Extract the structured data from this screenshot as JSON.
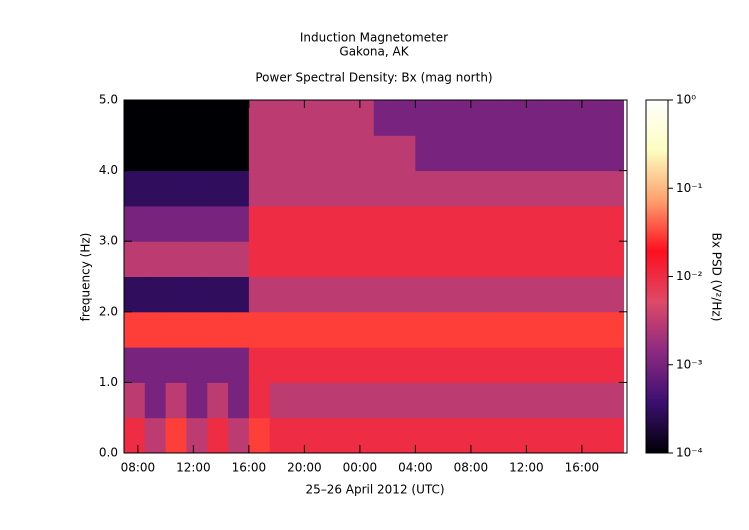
{
  "chart_data": {
    "type": "heatmap",
    "title": "Induction Magnetometer",
    "subtitle": "Gakona, AK",
    "plot_title": "Power Spectral Density: Bx (mag north)",
    "x_label": "25–26 April 2012 (UTC)",
    "y_label": "frequency (Hz)",
    "colorbar_label": "Bx PSD (V²/Hz)",
    "x": [
      7.75,
      9.25,
      10.75,
      12.25,
      13.75,
      15.25,
      16.75,
      18.25,
      19.75,
      21.25,
      22.75,
      24.25,
      25.75,
      27.25,
      28.75,
      30.25,
      31.75,
      33.25,
      34.75,
      36.25,
      37.75,
      39.25,
      40.75,
      42.25
    ],
    "y": [
      0.25,
      0.75,
      1.25,
      1.75,
      2.25,
      2.75,
      3.25,
      3.75,
      4.25,
      4.75
    ],
    "z": [
      [
        0.01,
        0.003,
        0.03,
        0.003,
        0.01,
        0.003,
        0.03,
        0.01,
        0.01,
        0.01,
        0.01,
        0.01,
        0.01,
        0.01,
        0.01,
        0.01,
        0.01,
        0.01,
        0.01,
        0.01,
        0.01,
        0.01,
        0.01,
        0.01
      ],
      [
        0.003,
        0.001,
        0.003,
        0.001,
        0.003,
        0.001,
        0.01,
        0.003,
        0.003,
        0.003,
        0.003,
        0.003,
        0.003,
        0.003,
        0.003,
        0.003,
        0.003,
        0.003,
        0.003,
        0.003,
        0.003,
        0.003,
        0.003,
        0.003
      ],
      [
        0.001,
        0.001,
        0.001,
        0.001,
        0.001,
        0.001,
        0.01,
        0.01,
        0.01,
        0.01,
        0.01,
        0.01,
        0.01,
        0.01,
        0.01,
        0.01,
        0.01,
        0.01,
        0.01,
        0.01,
        0.01,
        0.01,
        0.01,
        0.01
      ],
      [
        0.03,
        0.03,
        0.03,
        0.03,
        0.03,
        0.03,
        0.03,
        0.03,
        0.03,
        0.03,
        0.03,
        0.03,
        0.03,
        0.03,
        0.03,
        0.03,
        0.03,
        0.03,
        0.03,
        0.03,
        0.03,
        0.03,
        0.03,
        0.03
      ],
      [
        0.0003,
        0.0003,
        0.0003,
        0.0003,
        0.0003,
        0.0003,
        0.003,
        0.003,
        0.003,
        0.003,
        0.003,
        0.003,
        0.003,
        0.003,
        0.003,
        0.003,
        0.003,
        0.003,
        0.003,
        0.003,
        0.003,
        0.003,
        0.003,
        0.003
      ],
      [
        0.003,
        0.003,
        0.003,
        0.003,
        0.003,
        0.003,
        0.01,
        0.01,
        0.01,
        0.01,
        0.01,
        0.01,
        0.01,
        0.01,
        0.01,
        0.01,
        0.01,
        0.01,
        0.01,
        0.01,
        0.01,
        0.01,
        0.01,
        0.01
      ],
      [
        0.001,
        0.001,
        0.001,
        0.001,
        0.001,
        0.001,
        0.01,
        0.01,
        0.01,
        0.01,
        0.01,
        0.01,
        0.01,
        0.01,
        0.01,
        0.01,
        0.01,
        0.01,
        0.01,
        0.01,
        0.01,
        0.01,
        0.01,
        0.01
      ],
      [
        0.0003,
        0.0003,
        0.0003,
        0.0003,
        0.0003,
        0.0003,
        0.003,
        0.003,
        0.003,
        0.003,
        0.003,
        0.003,
        0.003,
        0.003,
        0.003,
        0.003,
        0.003,
        0.003,
        0.003,
        0.003,
        0.003,
        0.003,
        0.003,
        0.003
      ],
      [
        0.0001,
        0.0001,
        0.0001,
        0.0001,
        0.0001,
        0.0001,
        0.003,
        0.003,
        0.003,
        0.003,
        0.003,
        0.003,
        0.003,
        0.003,
        0.001,
        0.001,
        0.001,
        0.001,
        0.001,
        0.001,
        0.001,
        0.001,
        0.001,
        0.001
      ],
      [
        0.0001,
        0.0001,
        0.0001,
        0.0001,
        0.0001,
        0.0001,
        0.003,
        0.003,
        0.003,
        0.003,
        0.003,
        0.003,
        0.001,
        0.001,
        0.001,
        0.001,
        0.001,
        0.001,
        0.001,
        0.001,
        0.001,
        0.001,
        0.001,
        0.001
      ]
    ],
    "xlim": [
      7,
      43.25
    ],
    "xticks": [
      {
        "value": 8,
        "label": "08:00"
      },
      {
        "value": 12,
        "label": "12:00"
      },
      {
        "value": 16,
        "label": "16:00"
      },
      {
        "value": 20,
        "label": "20:00"
      },
      {
        "value": 24,
        "label": "00:00"
      },
      {
        "value": 28,
        "label": "04:00"
      },
      {
        "value": 32,
        "label": "08:00"
      },
      {
        "value": 36,
        "label": "12:00"
      },
      {
        "value": 40,
        "label": "16:00"
      }
    ],
    "ylim": [
      0,
      5
    ],
    "yticks": [
      {
        "value": 0,
        "label": "0.0"
      },
      {
        "value": 1,
        "label": "1.0"
      },
      {
        "value": 2,
        "label": "2.0"
      },
      {
        "value": 3,
        "label": "3.0"
      },
      {
        "value": 4,
        "label": "4.0"
      },
      {
        "value": 5,
        "label": "5.0"
      }
    ],
    "clim": [
      0.0001,
      1
    ],
    "cticks": [
      {
        "value": 0.0001,
        "label": "10⁻⁴"
      },
      {
        "value": 0.001,
        "label": "10⁻³"
      },
      {
        "value": 0.01,
        "label": "10⁻²"
      },
      {
        "value": 0.1,
        "label": "10⁻¹"
      },
      {
        "value": 1,
        "label": "10⁰"
      }
    ],
    "color_log_scale": true,
    "colorscale": [
      "#000004",
      "#3b0f70",
      "#8c2981",
      "#de4968",
      "#fe0f1f",
      "#fe9f6d",
      "#fcfdbf",
      "#ffffff"
    ]
  }
}
